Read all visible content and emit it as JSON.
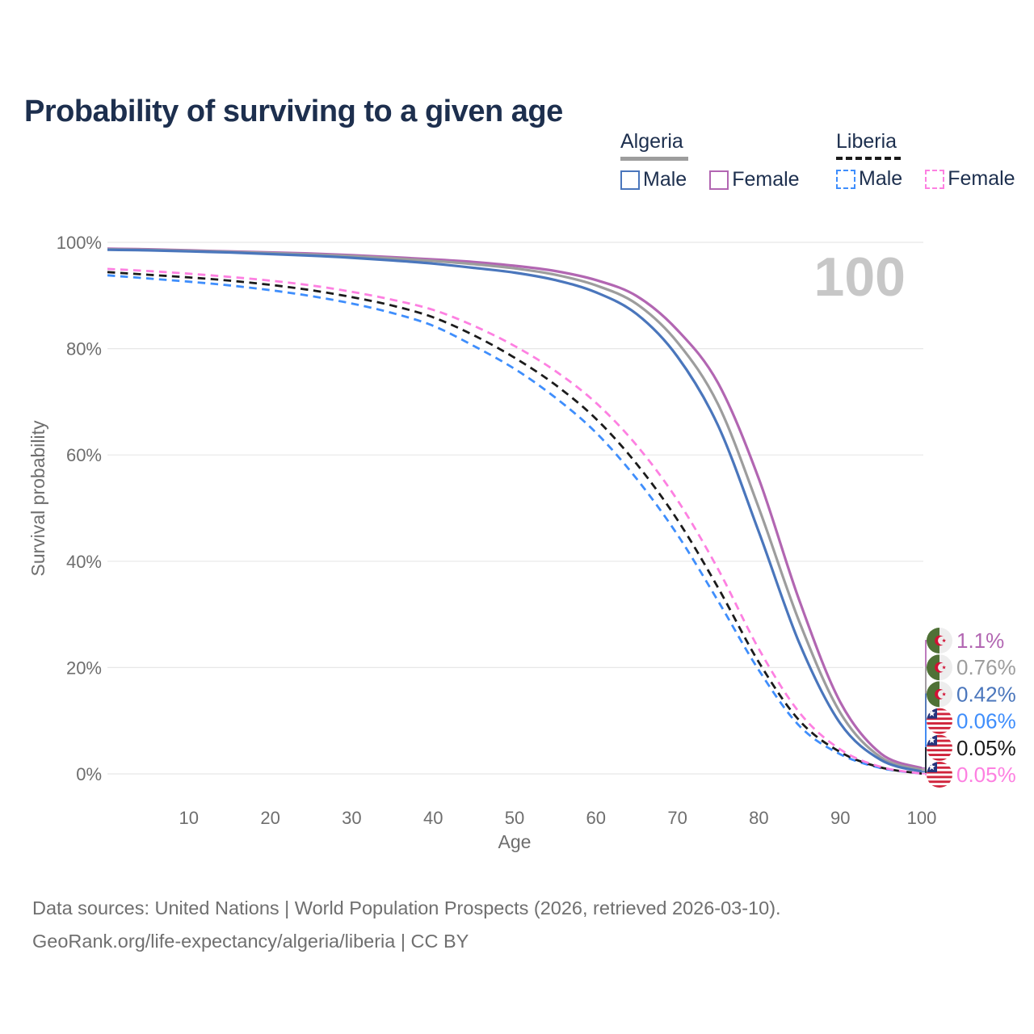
{
  "chart_data": {
    "type": "line",
    "title": "Probability of surviving to a given age",
    "xlabel": "Age",
    "ylabel": "Survival probability",
    "xlim": [
      0,
      100
    ],
    "ylim": [
      0,
      100
    ],
    "grid": true,
    "legend_position": "top-right",
    "watermark": "100",
    "x": [
      0,
      5,
      10,
      15,
      20,
      25,
      30,
      35,
      40,
      45,
      50,
      55,
      60,
      65,
      70,
      75,
      80,
      85,
      90,
      95,
      100
    ],
    "x_ticks": [
      10,
      20,
      30,
      40,
      50,
      60,
      70,
      80,
      90,
      100
    ],
    "y_ticks": [
      {
        "value": 0,
        "label": "0%"
      },
      {
        "value": 20,
        "label": "20%"
      },
      {
        "value": 40,
        "label": "40%"
      },
      {
        "value": 60,
        "label": "60%"
      },
      {
        "value": 80,
        "label": "80%"
      },
      {
        "value": 100,
        "label": "100%"
      }
    ],
    "series": [
      {
        "name": "Algeria Female",
        "country": "Algeria",
        "sex": "Female",
        "color": "#b266b2",
        "dashed": false,
        "flag": "algeria",
        "end_label": "1.1%",
        "values": [
          98.8,
          98.7,
          98.5,
          98.3,
          98.1,
          97.9,
          97.6,
          97.2,
          96.8,
          96.3,
          95.6,
          94.6,
          92.9,
          89.9,
          83.5,
          73.5,
          55.5,
          32.5,
          13.5,
          3.8,
          1.1
        ]
      },
      {
        "name": "Algeria Both sexes",
        "country": "Algeria",
        "sex": "Both sexes",
        "color": "#9d9d9d",
        "dashed": false,
        "flag": "algeria",
        "end_label": "0.76%",
        "values": [
          98.7,
          98.6,
          98.4,
          98.2,
          98.0,
          97.7,
          97.4,
          97.0,
          96.5,
          95.9,
          95.1,
          93.9,
          91.9,
          88.4,
          81.2,
          69.5,
          50.0,
          28.5,
          11.5,
          3.1,
          0.76
        ]
      },
      {
        "name": "Algeria Male",
        "country": "Algeria",
        "sex": "Male",
        "color": "#4a76bc",
        "dashed": false,
        "flag": "algeria",
        "end_label": "0.42%",
        "values": [
          98.6,
          98.5,
          98.3,
          98.1,
          97.8,
          97.5,
          97.1,
          96.6,
          96.0,
          95.2,
          94.3,
          92.9,
          90.6,
          86.5,
          78.5,
          65.5,
          45.5,
          24.5,
          9.5,
          2.6,
          0.42
        ]
      },
      {
        "name": "Liberia Male",
        "country": "Liberia",
        "sex": "Male",
        "color": "#3f8efc",
        "dashed": true,
        "flag": "liberia",
        "end_label": "0.06%",
        "values": [
          93.8,
          93.2,
          92.6,
          91.9,
          91.0,
          89.9,
          88.5,
          86.7,
          84.3,
          80.5,
          76.2,
          70.8,
          64.2,
          55.5,
          45.0,
          32.5,
          19.5,
          9.0,
          3.7,
          1.1,
          0.06
        ]
      },
      {
        "name": "Liberia Both sexes",
        "country": "Liberia",
        "sex": "Both sexes",
        "color": "#1b1b1b",
        "dashed": true,
        "flag": "liberia",
        "end_label": "0.05%",
        "values": [
          94.4,
          93.9,
          93.4,
          92.8,
          92.0,
          91.0,
          89.7,
          88.1,
          85.9,
          82.5,
          78.3,
          73.2,
          66.8,
          58.3,
          47.8,
          35.0,
          21.0,
          10.0,
          4.1,
          1.2,
          0.05
        ]
      },
      {
        "name": "Liberia Female",
        "country": "Liberia",
        "sex": "Female",
        "color": "#fd80e1",
        "dashed": true,
        "flag": "liberia",
        "end_label": "0.05%",
        "values": [
          95.0,
          94.6,
          94.1,
          93.5,
          92.8,
          91.9,
          90.7,
          89.2,
          87.3,
          84.3,
          80.5,
          75.8,
          69.8,
          61.8,
          51.5,
          38.5,
          23.5,
          11.5,
          4.6,
          1.3,
          0.05
        ]
      }
    ]
  },
  "legend": {
    "groups": [
      {
        "label": "Algeria",
        "line_style": "solid",
        "swatch_color": "#9d9d9d",
        "items": [
          {
            "label": "Male",
            "color": "#4a76bc",
            "dashed": false
          },
          {
            "label": "Female",
            "color": "#b266b2",
            "dashed": false
          }
        ]
      },
      {
        "label": "Liberia",
        "line_style": "dashed",
        "swatch_color": "#1b1b1b",
        "items": [
          {
            "label": "Male",
            "color": "#3f8efc",
            "dashed": true
          },
          {
            "label": "Female",
            "color": "#fd80e1",
            "dashed": true
          }
        ]
      }
    ]
  },
  "footer": {
    "line1": "Data sources: United Nations | World Population Prospects (2026, retrieved 2026-03-10).",
    "line2": "GeoRank.org/life-expectancy/algeria/liberia | CC BY"
  },
  "colors": {
    "title_text": "#1d2f4e",
    "axis_text": "#6e6e6e",
    "gridline": "#e7e7e7",
    "watermark": "#c7c7c7",
    "algeria_flag_green": "#4f7136",
    "algeria_flag_white": "#ededed",
    "algeria_flag_red": "#d21034",
    "liberia_flag_red": "#d0243c",
    "liberia_flag_white": "#ffffff",
    "liberia_flag_blue": "#24357e"
  }
}
